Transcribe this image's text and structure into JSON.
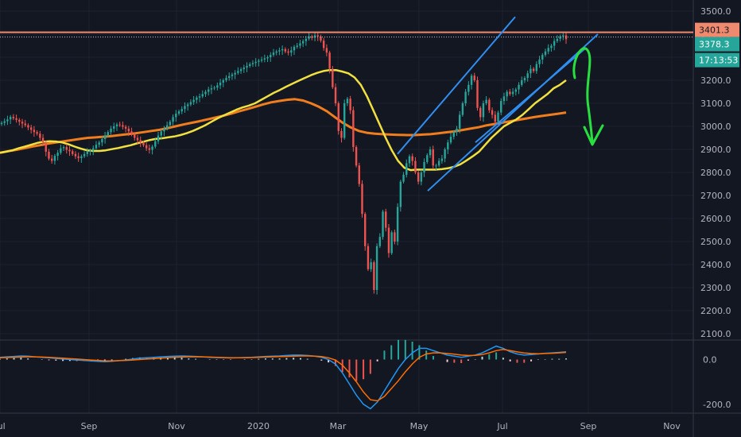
{
  "chart_data": {
    "type": "candlestick",
    "main_panel": {
      "y_ticks": [
        "2100.0",
        "2200.0",
        "2300.0",
        "2400.0",
        "2500.0",
        "2600.0",
        "2700.0",
        "2800.0",
        "2900.0",
        "3000.0",
        "3100.0",
        "3200.0",
        "3300.0",
        "3400.0",
        "3500.0"
      ],
      "y_tick_values": [
        2100,
        2200,
        2300,
        2400,
        2500,
        2600,
        2700,
        2800,
        2900,
        3000,
        3100,
        3200,
        3300,
        3400,
        3500
      ],
      "ylim": [
        2060,
        3530
      ],
      "resistance_level": 3401.3,
      "badges": [
        {
          "label": "3401.3",
          "value": 3401.3,
          "color": "#f08a6e"
        },
        {
          "label": "3378.3",
          "value": 3378.3,
          "color": "#26a69a"
        },
        {
          "label": "17:13:53",
          "value": 3330,
          "color": "#26a69a"
        }
      ],
      "series_colors": {
        "up": "#26a69a",
        "down": "#ef5350",
        "ma_fast": "#f0e040",
        "ma_slow": "#f07d1e",
        "channel": "#2f8ef0",
        "arrow": "#27e040",
        "resistance": "#f08a6e"
      },
      "candles_close": [
        3015,
        3022,
        3030,
        3041,
        3035,
        3028,
        3020,
        3012,
        3005,
        2995,
        2985,
        2975,
        2968,
        2950,
        2930,
        2890,
        2860,
        2850,
        2872,
        2885,
        2905,
        2910,
        2898,
        2892,
        2880,
        2870,
        2862,
        2870,
        2880,
        2890,
        2895,
        2905,
        2920,
        2930,
        2945,
        2960,
        2975,
        2990,
        3000,
        3008,
        3005,
        2998,
        2990,
        2978,
        2965,
        2950,
        2940,
        2930,
        2918,
        2905,
        2898,
        2912,
        2935,
        2960,
        2978,
        2990,
        3005,
        3020,
        3040,
        3055,
        3065,
        3075,
        3088,
        3095,
        3105,
        3115,
        3125,
        3130,
        3140,
        3150,
        3160,
        3165,
        3168,
        3178,
        3190,
        3200,
        3210,
        3218,
        3225,
        3232,
        3240,
        3248,
        3255,
        3262,
        3270,
        3275,
        3280,
        3285,
        3290,
        3295,
        3300,
        3310,
        3320,
        3325,
        3330,
        3335,
        3325,
        3320,
        3330,
        3345,
        3350,
        3360,
        3370,
        3380,
        3390,
        3385,
        3395,
        3390,
        3372,
        3340,
        3320,
        3250,
        3170,
        3100,
        2980,
        2950,
        3100,
        3120,
        3070,
        2910,
        2830,
        2750,
        2620,
        2480,
        2380,
        2410,
        2290,
        2480,
        2520,
        2630,
        2560,
        2450,
        2540,
        2500,
        2650,
        2760,
        2790,
        2840,
        2870,
        2850,
        2800,
        2760,
        2800,
        2845,
        2875,
        2900,
        2830,
        2830,
        2850,
        2860,
        2900,
        2930,
        2955,
        2975,
        2990,
        3050,
        3100,
        3150,
        3180,
        3220,
        3200,
        3080,
        3040,
        3100,
        3115,
        3070,
        3050,
        3020,
        3060,
        3110,
        3130,
        3150,
        3140,
        3150,
        3160,
        3180,
        3200,
        3210,
        3230,
        3250,
        3240,
        3270,
        3290,
        3310,
        3325,
        3340,
        3350,
        3370,
        3380,
        3390,
        3395,
        3378
      ],
      "ma_fast": [
        2885,
        2890,
        2896,
        2905,
        2912,
        2920,
        2928,
        2933,
        2935,
        2934,
        2930,
        2922,
        2912,
        2903,
        2896,
        2893,
        2893,
        2896,
        2901,
        2906,
        2912,
        2918,
        2926,
        2933,
        2940,
        2945,
        2948,
        2952,
        2956,
        2962,
        2970,
        2980,
        2992,
        3005,
        3020,
        3035,
        3048,
        3060,
        3072,
        3082,
        3090,
        3100,
        3115,
        3130,
        3145,
        3158,
        3172,
        3185,
        3198,
        3210,
        3222,
        3232,
        3240,
        3244,
        3244,
        3238,
        3230,
        3212,
        3180,
        3130,
        3070,
        3010,
        2950,
        2895,
        2850,
        2820,
        2810,
        2812,
        2812,
        2812,
        2812,
        2814,
        2818,
        2825,
        2835,
        2852,
        2870,
        2890,
        2920,
        2950,
        2975,
        3000,
        3015,
        3030,
        3050,
        3075,
        3100,
        3120,
        3140,
        3165,
        3180,
        3200
      ],
      "ma_slow": [
        2885,
        2892,
        2898,
        2905,
        2912,
        2918,
        2925,
        2930,
        2935,
        2940,
        2945,
        2950,
        2952,
        2955,
        2958,
        2962,
        2966,
        2970,
        2975,
        2980,
        2985,
        2992,
        3000,
        3008,
        3015,
        3022,
        3030,
        3038,
        3046,
        3055,
        3065,
        3075,
        3085,
        3095,
        3104,
        3110,
        3115,
        3118,
        3112,
        3100,
        3085,
        3065,
        3040,
        3015,
        2995,
        2980,
        2972,
        2968,
        2966,
        2964,
        2963,
        2962,
        2962,
        2964,
        2966,
        2970,
        2974,
        2978,
        2984,
        2990,
        2996,
        3004,
        3010,
        3016,
        3022,
        3028,
        3034,
        3040,
        3045,
        3050,
        3055,
        3060
      ],
      "channel_upper": [
        [
          2555,
          3145
        ],
        [
          3735,
          3720
        ]
      ],
      "channel_lower": [
        [
          3165,
          2800
        ],
        [
          3790,
          3560
        ]
      ],
      "channel_upper2": [
        [
          3058,
          2960
        ],
        [
          3635,
          3745
        ]
      ]
    },
    "indicator_panel": {
      "type": "macd",
      "y_ticks": [
        "0.0",
        "-200.0"
      ],
      "y_tick_values": [
        0,
        -200
      ],
      "ylim": [
        -240,
        80
      ],
      "macd_line": [
        10,
        12,
        14,
        16,
        15,
        12,
        10,
        8,
        5,
        2,
        0,
        -2,
        -4,
        -6,
        -8,
        -10,
        -8,
        -5,
        -2,
        2,
        6,
        8,
        10,
        12,
        14,
        15,
        16,
        15,
        14,
        12,
        10,
        9,
        8,
        7,
        8,
        9,
        10,
        12,
        14,
        15,
        16,
        18,
        20,
        20,
        18,
        15,
        10,
        0,
        -20,
        -60,
        -110,
        -160,
        -200,
        -220,
        -190,
        -140,
        -90,
        -40,
        0,
        30,
        50,
        50,
        40,
        30,
        20,
        15,
        10,
        15,
        20,
        30,
        45,
        60,
        50,
        35,
        25,
        20,
        22,
        25,
        28,
        30,
        32,
        35
      ],
      "signal_line": [
        8,
        9,
        10,
        11,
        12,
        12,
        11,
        10,
        8,
        6,
        4,
        2,
        0,
        -2,
        -4,
        -6,
        -6,
        -5,
        -4,
        -2,
        0,
        2,
        4,
        6,
        8,
        10,
        11,
        12,
        12,
        12,
        11,
        10,
        9,
        8,
        8,
        8,
        9,
        10,
        11,
        12,
        13,
        14,
        15,
        16,
        16,
        15,
        13,
        8,
        -2,
        -25,
        -60,
        -100,
        -145,
        -180,
        -185,
        -165,
        -130,
        -95,
        -55,
        -20,
        10,
        25,
        30,
        30,
        27,
        24,
        20,
        18,
        19,
        22,
        30,
        40,
        45,
        40,
        34,
        29,
        27,
        26,
        27,
        28,
        30,
        32
      ]
    },
    "x_tick_labels": [
      "Jul",
      "Sep",
      "Nov",
      "2020",
      "Mar",
      "May",
      "Jul",
      "Sep",
      "Nov"
    ],
    "x_tick_kinds": [
      "month",
      "month",
      "month",
      "year",
      "month",
      "month",
      "month",
      "month",
      "month"
    ]
  }
}
